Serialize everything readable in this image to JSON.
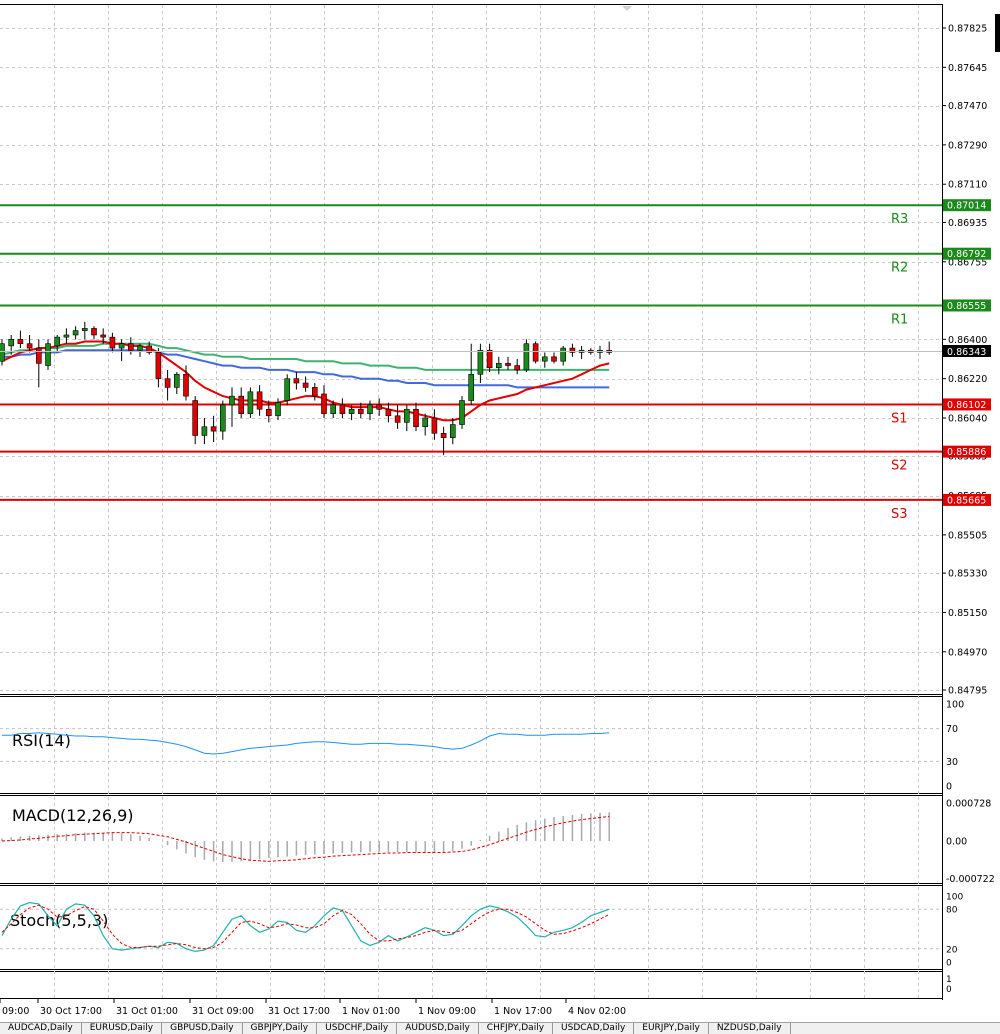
{
  "price_axis": {
    "ticks": [
      "0.87825",
      "0.87645",
      "0.87470",
      "0.87290",
      "0.87110",
      "0.86935",
      "0.86755",
      "0.86400",
      "0.86220",
      "0.86040",
      "0.85865",
      "0.85685",
      "0.85505",
      "0.85330",
      "0.85150",
      "0.84970",
      "0.84795"
    ],
    "current": "0.86343"
  },
  "levels": [
    {
      "name": "R3",
      "label": "0.87014",
      "price": 0.87014,
      "color": "#1a8a1a"
    },
    {
      "name": "R2",
      "label": "0.86792",
      "price": 0.86792,
      "color": "#1a8a1a"
    },
    {
      "name": "R1",
      "label": "0.86555",
      "price": 0.86555,
      "color": "#1a8a1a"
    },
    {
      "name": "S1",
      "label": "0.86102",
      "price": 0.86102,
      "color": "#e00000"
    },
    {
      "name": "S2",
      "label": "0.85886",
      "price": 0.85886,
      "color": "#e00000"
    },
    {
      "name": "S3",
      "label": "0.85665",
      "price": 0.85665,
      "color": "#e00000"
    }
  ],
  "time_axis": [
    "09:00",
    "30 Oct 17:00",
    "31 Oct 01:00",
    "31 Oct 09:00",
    "31 Oct 17:00",
    "1 Nov 01:00",
    "1 Nov 09:00",
    "1 Nov 17:00",
    "4 Nov 02:00"
  ],
  "rsi": {
    "label": "RSI(14)",
    "ticks": [
      "100",
      "70",
      "30",
      "0"
    ]
  },
  "macd": {
    "label": "MACD(12,26,9)",
    "ticks": [
      "0.000728",
      "0.00",
      "-0.000722"
    ]
  },
  "stoch": {
    "label": "Stoch(5,5,3)",
    "ticks": [
      "100",
      "80",
      "20",
      "0"
    ]
  },
  "extra_pane": {
    "ticks": [
      "1",
      "0"
    ]
  },
  "tabs": [
    "AUDCAD,Daily",
    "EURUSD,Daily",
    "GBPUSD,Daily",
    "GBPJPY,Daily",
    "USDCHF,Daily",
    "AUDUSD,Daily",
    "CHFJPY,Daily",
    "USDCAD,Daily",
    "EURJPY,Daily",
    "NZDUSD,Daily"
  ],
  "colors": {
    "up": "#1a8a1a",
    "down": "#e00000",
    "ma_red": "#e00000",
    "ma_green": "#3cb371",
    "ma_blue": "#4169e1",
    "rsi": "#1e90ff",
    "stoch_main": "#20b2aa",
    "signal": "#e00000",
    "grid": "#c8c8c8"
  },
  "chart_data": {
    "type": "candlestick",
    "price_ylim": [
      0.84795,
      0.87825
    ],
    "candles": [
      {
        "o": 0.863,
        "h": 0.864,
        "l": 0.8628,
        "c": 0.8638
      },
      {
        "o": 0.8637,
        "h": 0.8642,
        "l": 0.8633,
        "c": 0.864
      },
      {
        "o": 0.864,
        "h": 0.8644,
        "l": 0.8636,
        "c": 0.8638
      },
      {
        "o": 0.8638,
        "h": 0.8642,
        "l": 0.8634,
        "c": 0.8636
      },
      {
        "o": 0.8636,
        "h": 0.864,
        "l": 0.8618,
        "c": 0.8629
      },
      {
        "o": 0.8628,
        "h": 0.864,
        "l": 0.8626,
        "c": 0.8638
      },
      {
        "o": 0.8637,
        "h": 0.8642,
        "l": 0.8634,
        "c": 0.8641
      },
      {
        "o": 0.8641,
        "h": 0.8645,
        "l": 0.8638,
        "c": 0.8642
      },
      {
        "o": 0.8642,
        "h": 0.8646,
        "l": 0.864,
        "c": 0.8644
      },
      {
        "o": 0.8644,
        "h": 0.8648,
        "l": 0.864,
        "c": 0.8645
      },
      {
        "o": 0.8645,
        "h": 0.8646,
        "l": 0.864,
        "c": 0.8642
      },
      {
        "o": 0.8642,
        "h": 0.8645,
        "l": 0.8638,
        "c": 0.8641
      },
      {
        "o": 0.8641,
        "h": 0.8643,
        "l": 0.8634,
        "c": 0.8636
      },
      {
        "o": 0.8636,
        "h": 0.864,
        "l": 0.863,
        "c": 0.8638
      },
      {
        "o": 0.8638,
        "h": 0.8641,
        "l": 0.8633,
        "c": 0.8635
      },
      {
        "o": 0.8635,
        "h": 0.8638,
        "l": 0.8632,
        "c": 0.8637
      },
      {
        "o": 0.8637,
        "h": 0.8639,
        "l": 0.8633,
        "c": 0.8634
      },
      {
        "o": 0.8634,
        "h": 0.8636,
        "l": 0.8618,
        "c": 0.8622
      },
      {
        "o": 0.8622,
        "h": 0.8626,
        "l": 0.8612,
        "c": 0.8618
      },
      {
        "o": 0.8618,
        "h": 0.8625,
        "l": 0.8615,
        "c": 0.8624
      },
      {
        "o": 0.8624,
        "h": 0.8628,
        "l": 0.8612,
        "c": 0.8614
      },
      {
        "o": 0.8612,
        "h": 0.8614,
        "l": 0.8592,
        "c": 0.8596
      },
      {
        "o": 0.8596,
        "h": 0.8604,
        "l": 0.8592,
        "c": 0.86
      },
      {
        "o": 0.86,
        "h": 0.8605,
        "l": 0.8593,
        "c": 0.8598
      },
      {
        "o": 0.8598,
        "h": 0.8612,
        "l": 0.8594,
        "c": 0.861
      },
      {
        "o": 0.861,
        "h": 0.8618,
        "l": 0.86,
        "c": 0.8614
      },
      {
        "o": 0.8614,
        "h": 0.8618,
        "l": 0.8604,
        "c": 0.8606
      },
      {
        "o": 0.8606,
        "h": 0.8618,
        "l": 0.8604,
        "c": 0.8616
      },
      {
        "o": 0.8616,
        "h": 0.8619,
        "l": 0.8605,
        "c": 0.8608
      },
      {
        "o": 0.8608,
        "h": 0.8612,
        "l": 0.8602,
        "c": 0.8605
      },
      {
        "o": 0.8605,
        "h": 0.8613,
        "l": 0.8603,
        "c": 0.8611
      },
      {
        "o": 0.8612,
        "h": 0.8624,
        "l": 0.861,
        "c": 0.8622
      },
      {
        "o": 0.8622,
        "h": 0.8625,
        "l": 0.8617,
        "c": 0.862
      },
      {
        "o": 0.862,
        "h": 0.8623,
        "l": 0.8616,
        "c": 0.8618
      },
      {
        "o": 0.8618,
        "h": 0.862,
        "l": 0.8612,
        "c": 0.8614
      },
      {
        "o": 0.8615,
        "h": 0.8619,
        "l": 0.8604,
        "c": 0.8606
      },
      {
        "o": 0.8606,
        "h": 0.8612,
        "l": 0.8604,
        "c": 0.861
      },
      {
        "o": 0.861,
        "h": 0.8613,
        "l": 0.8604,
        "c": 0.8606
      },
      {
        "o": 0.8606,
        "h": 0.861,
        "l": 0.8603,
        "c": 0.8608
      },
      {
        "o": 0.8608,
        "h": 0.8611,
        "l": 0.8604,
        "c": 0.8606
      },
      {
        "o": 0.8606,
        "h": 0.8612,
        "l": 0.8603,
        "c": 0.861
      },
      {
        "o": 0.861,
        "h": 0.8613,
        "l": 0.8605,
        "c": 0.8608
      },
      {
        "o": 0.8608,
        "h": 0.8611,
        "l": 0.8602,
        "c": 0.8605
      },
      {
        "o": 0.8605,
        "h": 0.861,
        "l": 0.8599,
        "c": 0.8602
      },
      {
        "o": 0.8602,
        "h": 0.861,
        "l": 0.8598,
        "c": 0.8608
      },
      {
        "o": 0.8608,
        "h": 0.8611,
        "l": 0.8598,
        "c": 0.86
      },
      {
        "o": 0.86,
        "h": 0.8606,
        "l": 0.8596,
        "c": 0.8604
      },
      {
        "o": 0.8604,
        "h": 0.8608,
        "l": 0.8594,
        "c": 0.8597
      },
      {
        "o": 0.8597,
        "h": 0.86,
        "l": 0.8587,
        "c": 0.8595
      },
      {
        "o": 0.8595,
        "h": 0.8604,
        "l": 0.8592,
        "c": 0.8601
      },
      {
        "o": 0.8601,
        "h": 0.8614,
        "l": 0.8599,
        "c": 0.8612
      },
      {
        "o": 0.8612,
        "h": 0.8638,
        "l": 0.861,
        "c": 0.8624
      },
      {
        "o": 0.8624,
        "h": 0.8638,
        "l": 0.862,
        "c": 0.8635
      },
      {
        "o": 0.8635,
        "h": 0.8638,
        "l": 0.8625,
        "c": 0.8627
      },
      {
        "o": 0.8627,
        "h": 0.8632,
        "l": 0.8624,
        "c": 0.8629
      },
      {
        "o": 0.8629,
        "h": 0.8632,
        "l": 0.8626,
        "c": 0.8628
      },
      {
        "o": 0.8628,
        "h": 0.8631,
        "l": 0.8624,
        "c": 0.8626
      },
      {
        "o": 0.8626,
        "h": 0.864,
        "l": 0.8625,
        "c": 0.8638
      },
      {
        "o": 0.8638,
        "h": 0.8639,
        "l": 0.8629,
        "c": 0.863
      },
      {
        "o": 0.863,
        "h": 0.8634,
        "l": 0.8627,
        "c": 0.8632
      },
      {
        "o": 0.8632,
        "h": 0.8634,
        "l": 0.8629,
        "c": 0.863
      },
      {
        "o": 0.863,
        "h": 0.8637,
        "l": 0.8628,
        "c": 0.8636
      },
      {
        "o": 0.8636,
        "h": 0.8638,
        "l": 0.8632,
        "c": 0.8634
      },
      {
        "o": 0.8634,
        "h": 0.8637,
        "l": 0.8631,
        "c": 0.8635
      },
      {
        "o": 0.8635,
        "h": 0.8636,
        "l": 0.8633,
        "c": 0.8634
      },
      {
        "o": 0.8634,
        "h": 0.8637,
        "l": 0.8631,
        "c": 0.8635
      },
      {
        "o": 0.8635,
        "h": 0.8639,
        "l": 0.8633,
        "c": 0.8634
      }
    ],
    "ma_red": [
      0.863,
      0.8632,
      0.8634,
      0.8635,
      0.8636,
      0.8636,
      0.8637,
      0.8638,
      0.8638,
      0.8639,
      0.8639,
      0.8639,
      0.8638,
      0.8638,
      0.8637,
      0.8637,
      0.8636,
      0.8634,
      0.8631,
      0.8628,
      0.8625,
      0.8621,
      0.8618,
      0.8616,
      0.8614,
      0.8613,
      0.8612,
      0.8612,
      0.8612,
      0.8611,
      0.8611,
      0.8612,
      0.8613,
      0.8614,
      0.8614,
      0.8613,
      0.8611,
      0.861,
      0.8609,
      0.8609,
      0.8609,
      0.8609,
      0.8608,
      0.8607,
      0.8607,
      0.8606,
      0.8605,
      0.8604,
      0.8603,
      0.8603,
      0.8604,
      0.8607,
      0.861,
      0.8612,
      0.8613,
      0.8614,
      0.8615,
      0.8617,
      0.8618,
      0.8619,
      0.862,
      0.8621,
      0.8622,
      0.8624,
      0.8626,
      0.8628,
      0.8629
    ],
    "ma_green": [
      0.8633,
      0.8634,
      0.8635,
      0.8635,
      0.8636,
      0.8636,
      0.8636,
      0.8637,
      0.8637,
      0.8637,
      0.8637,
      0.8638,
      0.8638,
      0.8638,
      0.8638,
      0.8638,
      0.8638,
      0.8637,
      0.8636,
      0.8636,
      0.8635,
      0.8634,
      0.8633,
      0.8633,
      0.8632,
      0.8632,
      0.8632,
      0.8631,
      0.8631,
      0.8631,
      0.8631,
      0.8631,
      0.8631,
      0.863,
      0.863,
      0.863,
      0.863,
      0.8629,
      0.8629,
      0.8629,
      0.8628,
      0.8628,
      0.8628,
      0.8627,
      0.8627,
      0.8627,
      0.8626,
      0.8626,
      0.8626,
      0.8626,
      0.8626,
      0.8626,
      0.8626,
      0.8626,
      0.8626,
      0.8626,
      0.8626,
      0.8626,
      0.8626,
      0.8626,
      0.8626,
      0.8626,
      0.8626,
      0.8626,
      0.8626,
      0.8626,
      0.8626
    ],
    "ma_blue": [
      0.8632,
      0.8632,
      0.8633,
      0.8633,
      0.8634,
      0.8634,
      0.8634,
      0.8635,
      0.8635,
      0.8635,
      0.8635,
      0.8635,
      0.8635,
      0.8635,
      0.8635,
      0.8635,
      0.8635,
      0.8634,
      0.8633,
      0.8633,
      0.8632,
      0.8631,
      0.863,
      0.8629,
      0.8628,
      0.8628,
      0.8627,
      0.8627,
      0.8627,
      0.8626,
      0.8626,
      0.8626,
      0.8625,
      0.8625,
      0.8625,
      0.8624,
      0.8624,
      0.8623,
      0.8623,
      0.8622,
      0.8622,
      0.8622,
      0.8621,
      0.8621,
      0.862,
      0.862,
      0.862,
      0.8619,
      0.8619,
      0.8619,
      0.8619,
      0.8619,
      0.8619,
      0.8619,
      0.8619,
      0.8619,
      0.8618,
      0.8618,
      0.8618,
      0.8618,
      0.8618,
      0.8618,
      0.8618,
      0.8618,
      0.8618,
      0.8618,
      0.8618
    ],
    "rsi_values": [
      62,
      62,
      64,
      64,
      65,
      64,
      63,
      62,
      61,
      61,
      60,
      60,
      59,
      58,
      57,
      57,
      56,
      55,
      53,
      51,
      48,
      44,
      40,
      39,
      40,
      42,
      44,
      46,
      47,
      48,
      49,
      50,
      52,
      53,
      54,
      54,
      53,
      52,
      51,
      51,
      52,
      52,
      52,
      51,
      51,
      50,
      49,
      48,
      46,
      45,
      46,
      50,
      55,
      61,
      64,
      63,
      63,
      62,
      62,
      62,
      63,
      63,
      63,
      63,
      64,
      64,
      65
    ],
    "macd_hist": [
      5e-05,
      7e-05,
      9e-05,
      0.0001,
      0.00011,
      0.00012,
      0.00013,
      0.00014,
      0.00015,
      0.00016,
      0.00016,
      0.00016,
      0.00016,
      0.00015,
      0.00013,
      0.0001,
      6e-05,
      0.0,
      -8e-05,
      -0.00016,
      -0.00024,
      -0.00031,
      -0.00036,
      -0.00039,
      -0.0004,
      -0.0004,
      -0.00039,
      -0.00037,
      -0.00035,
      -0.00033,
      -0.00031,
      -0.0003,
      -0.00028,
      -0.00027,
      -0.00026,
      -0.00025,
      -0.00024,
      -0.00023,
      -0.00022,
      -0.00022,
      -0.00021,
      -0.00021,
      -0.00021,
      -0.00021,
      -0.00021,
      -0.00022,
      -0.00022,
      -0.00022,
      -0.00021,
      -0.00019,
      -0.00015,
      -9e-05,
      2e-05,
      0.0001,
      0.00018,
      0.00025,
      0.00031,
      0.00036,
      0.0004,
      0.00043,
      0.00046,
      0.00048,
      0.0005,
      0.00052,
      0.00053,
      0.00054,
      0.00055
    ],
    "macd_signal": [
      0.0,
      1e-05,
      2e-05,
      4e-05,
      5e-05,
      7e-05,
      9e-05,
      0.0001,
      0.00012,
      0.00013,
      0.00014,
      0.00015,
      0.00016,
      0.00016,
      0.00016,
      0.00015,
      0.00014,
      0.00011,
      8e-05,
      3e-05,
      -2e-05,
      -8e-05,
      -0.00014,
      -0.0002,
      -0.00026,
      -0.0003,
      -0.00034,
      -0.00037,
      -0.00038,
      -0.00039,
      -0.00038,
      -0.00037,
      -0.00036,
      -0.00034,
      -0.00032,
      -0.00031,
      -0.00029,
      -0.00028,
      -0.00027,
      -0.00026,
      -0.00025,
      -0.00024,
      -0.00023,
      -0.00023,
      -0.00022,
      -0.00022,
      -0.00022,
      -0.00022,
      -0.00022,
      -0.00021,
      -0.0002,
      -0.00017,
      -0.00012,
      -7e-05,
      -1e-05,
      5e-05,
      0.00011,
      0.00017,
      0.00022,
      0.00027,
      0.00031,
      0.00035,
      0.00038,
      0.00041,
      0.00043,
      0.00045,
      0.00047
    ],
    "stoch_main": [
      40,
      65,
      85,
      90,
      88,
      70,
      55,
      80,
      88,
      86,
      70,
      40,
      20,
      18,
      20,
      22,
      24,
      22,
      30,
      28,
      20,
      16,
      18,
      25,
      45,
      65,
      70,
      55,
      45,
      50,
      62,
      60,
      48,
      45,
      55,
      70,
      82,
      78,
      55,
      32,
      25,
      30,
      40,
      32,
      38,
      45,
      52,
      48,
      40,
      42,
      55,
      70,
      80,
      85,
      82,
      76,
      68,
      55,
      40,
      38,
      45,
      48,
      52,
      60,
      70,
      75,
      80
    ],
    "stoch_signal": [
      45,
      58,
      72,
      82,
      86,
      80,
      68,
      70,
      78,
      84,
      80,
      62,
      42,
      28,
      22,
      22,
      24,
      24,
      26,
      28,
      26,
      22,
      20,
      22,
      30,
      45,
      60,
      62,
      58,
      52,
      54,
      58,
      56,
      52,
      52,
      58,
      70,
      78,
      72,
      58,
      42,
      32,
      32,
      35,
      37,
      40,
      45,
      48,
      46,
      44,
      48,
      58,
      68,
      76,
      80,
      80,
      75,
      68,
      58,
      48,
      42,
      43,
      47,
      52,
      58,
      65,
      72
    ]
  }
}
